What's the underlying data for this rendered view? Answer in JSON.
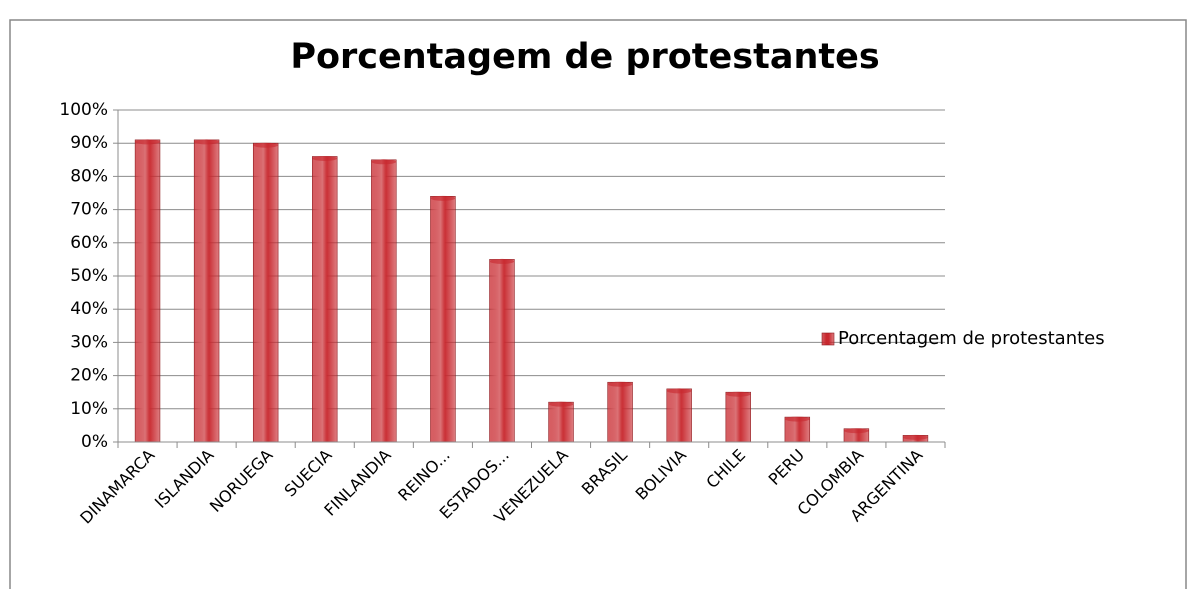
{
  "chart_data": {
    "type": "bar",
    "title": "Porcentagem de protestantes",
    "categories": [
      "DINAMARCA",
      "ISLANDIA",
      "NORUEGA",
      "SUECIA",
      "FINLANDIA",
      "REINO...",
      "ESTADOS...",
      "VENEZUELA",
      "BRASIL",
      "BOLIVIA",
      "CHILE",
      "PERU",
      "COLOMBIA",
      "ARGENTINA"
    ],
    "series": [
      {
        "name": "Porcentagem de protestantes",
        "color": "#c8282e",
        "values": [
          91,
          91,
          90,
          86,
          85,
          74,
          55,
          12,
          18,
          16,
          15,
          7.5,
          4,
          2
        ]
      }
    ],
    "ylim": [
      0,
      100
    ],
    "yticks": [
      {
        "value": 0,
        "label": "0%"
      },
      {
        "value": 10,
        "label": "10%"
      },
      {
        "value": 20,
        "label": "20%"
      },
      {
        "value": 30,
        "label": "30%"
      },
      {
        "value": 40,
        "label": "40%"
      },
      {
        "value": 50,
        "label": "50%"
      },
      {
        "value": 60,
        "label": "60%"
      },
      {
        "value": 70,
        "label": "70%"
      },
      {
        "value": 80,
        "label": "80%"
      },
      {
        "value": 90,
        "label": "90%"
      },
      {
        "value": 100,
        "label": "100%"
      }
    ],
    "grid": true,
    "legend": "right"
  }
}
